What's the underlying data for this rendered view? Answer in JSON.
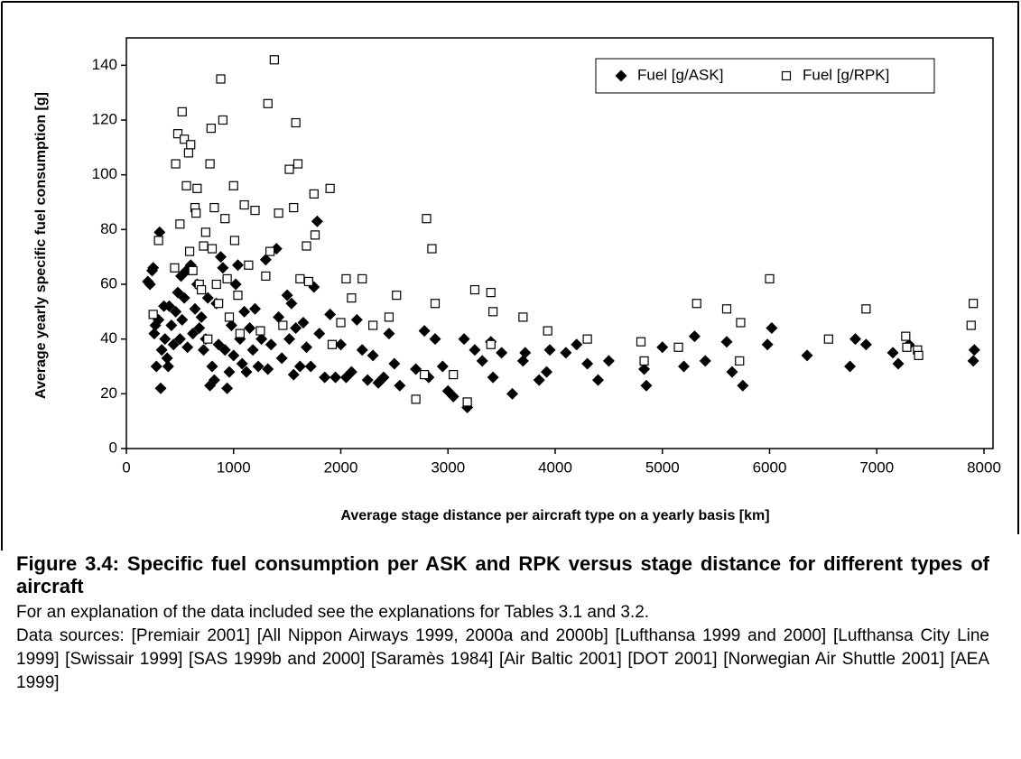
{
  "chart_data": {
    "type": "scatter",
    "xlabel": "Average stage distance per aircraft type on a yearly basis [km]",
    "ylabel": "Average yearly specific fuel consumption [g]",
    "xlim": [
      0,
      8000
    ],
    "xticks": [
      0,
      1000,
      2000,
      3000,
      4000,
      5000,
      6000,
      7000,
      8000
    ],
    "ylim": [
      0,
      150
    ],
    "yticks": [
      0,
      20,
      40,
      60,
      80,
      100,
      120,
      140
    ],
    "grid": false,
    "legend": "upper right",
    "series": [
      {
        "name": "Fuel [g/ASK]",
        "color": "#000000",
        "marker": "diamond",
        "x": [
          200,
          220,
          240,
          250,
          260,
          270,
          280,
          300,
          310,
          320,
          330,
          350,
          360,
          380,
          390,
          400,
          420,
          440,
          460,
          480,
          500,
          510,
          520,
          540,
          560,
          570,
          600,
          620,
          640,
          660,
          680,
          700,
          720,
          740,
          760,
          780,
          800,
          820,
          840,
          860,
          880,
          900,
          920,
          940,
          960,
          980,
          1000,
          1020,
          1040,
          1060,
          1080,
          1100,
          1120,
          1150,
          1180,
          1200,
          1230,
          1260,
          1300,
          1320,
          1350,
          1400,
          1420,
          1450,
          1500,
          1520,
          1540,
          1560,
          1580,
          1620,
          1650,
          1680,
          1720,
          1750,
          1780,
          1800,
          1850,
          1900,
          1950,
          2000,
          2050,
          2100,
          2150,
          2200,
          2250,
          2300,
          2350,
          2400,
          2450,
          2500,
          2550,
          2700,
          2780,
          2820,
          2880,
          2950,
          3000,
          3050,
          3150,
          3180,
          3250,
          3320,
          3400,
          3420,
          3500,
          3600,
          3700,
          3720,
          3850,
          3920,
          3950,
          4100,
          4200,
          4300,
          4400,
          4500,
          4850,
          4830,
          5000,
          5200,
          5300,
          5400,
          5600,
          5650,
          5750,
          5980,
          6020,
          6350,
          6750,
          6800,
          6900,
          7150,
          7200,
          7300,
          7900,
          7910
        ],
        "values": [
          61,
          60,
          65,
          66,
          42,
          45,
          30,
          47,
          79,
          22,
          36,
          52,
          40,
          33,
          30,
          52,
          45,
          38,
          50,
          57,
          40,
          63,
          47,
          55,
          65,
          37,
          67,
          42,
          51,
          60,
          44,
          48,
          36,
          40,
          55,
          23,
          30,
          25,
          53,
          38,
          70,
          66,
          36,
          22,
          28,
          45,
          34,
          60,
          67,
          40,
          31,
          50,
          28,
          44,
          36,
          51,
          30,
          40,
          69,
          29,
          38,
          73,
          48,
          33,
          56,
          40,
          53,
          27,
          44,
          30,
          46,
          37,
          30,
          59,
          83,
          42,
          26,
          49,
          26,
          38,
          26,
          28,
          47,
          36,
          25,
          34,
          24,
          26,
          42,
          31,
          23,
          29,
          43,
          26,
          40,
          30,
          21,
          19,
          40,
          15,
          36,
          32,
          39,
          26,
          35,
          20,
          32,
          35,
          25,
          28,
          36,
          35,
          38,
          31,
          25,
          32,
          23,
          29,
          37,
          30,
          41,
          32,
          39,
          28,
          23,
          38,
          44,
          34,
          30,
          40,
          38,
          35,
          31,
          38,
          32,
          36
        ]
      },
      {
        "name": "Fuel [g/RPK]",
        "color": "#000000",
        "marker": "square",
        "x": [
          250,
          300,
          450,
          460,
          480,
          500,
          520,
          540,
          560,
          580,
          600,
          590,
          620,
          640,
          650,
          660,
          680,
          700,
          720,
          740,
          760,
          780,
          790,
          800,
          820,
          840,
          860,
          880,
          900,
          920,
          940,
          960,
          1000,
          1010,
          1040,
          1060,
          1100,
          1140,
          1200,
          1250,
          1300,
          1320,
          1340,
          1380,
          1420,
          1460,
          1520,
          1560,
          1580,
          1600,
          1620,
          1680,
          1700,
          1750,
          1760,
          1900,
          1920,
          2000,
          2050,
          2100,
          2200,
          2300,
          2450,
          2520,
          2700,
          2780,
          2800,
          2850,
          2880,
          3050,
          3180,
          3250,
          3400,
          3420,
          3400,
          3700,
          3930,
          4300,
          4800,
          4830,
          5150,
          5320,
          5600,
          5730,
          5720,
          6000,
          6550,
          6900,
          7270,
          7280,
          7380,
          7390,
          7900,
          7880
        ],
        "values": [
          49,
          76,
          66,
          104,
          115,
          82,
          123,
          113,
          96,
          108,
          111,
          72,
          65,
          88,
          86,
          95,
          60,
          58,
          74,
          79,
          40,
          104,
          117,
          73,
          88,
          60,
          53,
          135,
          120,
          84,
          62,
          48,
          96,
          76,
          56,
          42,
          89,
          67,
          87,
          43,
          63,
          126,
          72,
          142,
          86,
          45,
          102,
          88,
          119,
          104,
          62,
          74,
          61,
          93,
          78,
          95,
          38,
          46,
          62,
          55,
          62,
          45,
          48,
          56,
          18,
          27,
          84,
          73,
          53,
          27,
          17,
          58,
          57,
          50,
          38,
          48,
          43,
          40,
          39,
          32,
          37,
          53,
          51,
          46,
          32,
          62,
          40,
          51,
          41,
          37,
          36,
          34,
          53,
          45
        ]
      }
    ]
  },
  "caption": {
    "title": "Figure 3.4: Specific fuel consumption per ASK and RPK versus stage distance for different types of aircraft",
    "lines": [
      "For an explanation of the data included see the explanations for Tables 3.1 and 3.2.",
      "Data sources: [Premiair 2001] [All Nippon Airways 1999, 2000a and 2000b] [Lufthansa 1999 and 2000] [Lufthansa City Line 1999] [Swissair 1999] [SAS 1999b and 2000] [Saramès 1984] [Air Baltic 2001] [DOT 2001] [Norwegian Air Shuttle 2001] [AEA 1999]"
    ]
  }
}
